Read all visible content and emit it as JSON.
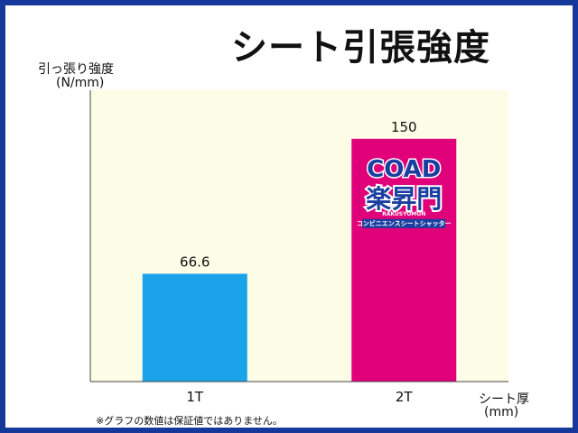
{
  "chart_data": {
    "type": "bar",
    "title": "シート引張強度",
    "ylabel_line1": "引っ張り強度",
    "ylabel_line2": "(N/mm)",
    "xlabel_line1": "シート厚",
    "xlabel_line2": "(mm)",
    "categories": [
      "1T",
      "2T"
    ],
    "values": [
      66.6,
      150
    ],
    "value_labels": [
      "66.6",
      "150"
    ],
    "bar_colors": [
      "#1aa3e8",
      "#e0007a"
    ],
    "ylim": [
      0,
      180
    ],
    "grid": false,
    "plot_background": "#fdfce6",
    "footnote": "※グラフの数値は保証値ではありません。"
  },
  "logo": {
    "line1": "COAD",
    "line2": "楽昇門",
    "line3": "RAKUSYOMON",
    "line4": "コンビニエンスシートシャッター"
  }
}
